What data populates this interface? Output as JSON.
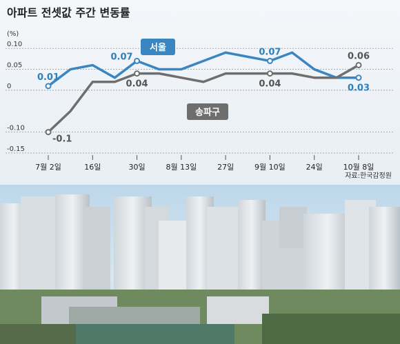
{
  "chart_data": {
    "type": "line",
    "title": "아파트 전셋값 주간 변동률",
    "ylabel": "(%)",
    "ylim": [
      -0.16,
      0.13
    ],
    "yticks": [
      {
        "value": 0.1,
        "label": "0.10"
      },
      {
        "value": 0.05,
        "label": "0.05"
      },
      {
        "value": 0,
        "label": "0"
      },
      {
        "value": -0.1,
        "label": "-0.10"
      },
      {
        "value": -0.15,
        "label": "-0.15"
      }
    ],
    "x_tick_labels": [
      {
        "index": 0,
        "label": "7월 2일"
      },
      {
        "index": 2,
        "label": "16일"
      },
      {
        "index": 4,
        "label": "30일"
      },
      {
        "index": 6,
        "label": "8월 13일"
      },
      {
        "index": 8,
        "label": "27일"
      },
      {
        "index": 10,
        "label": "9월 10일"
      },
      {
        "index": 12,
        "label": "24일"
      },
      {
        "index": 14,
        "label": "10월 8일"
      }
    ],
    "grid": true,
    "series": [
      {
        "name": "서울",
        "color": "#3a86c2",
        "values": [
          0.01,
          0.05,
          0.06,
          0.03,
          0.07,
          0.05,
          0.05,
          0.07,
          0.09,
          0.08,
          0.07,
          0.09,
          0.05,
          0.03,
          0.03
        ]
      },
      {
        "name": "송파구",
        "color": "#6e6e6e",
        "values": [
          -0.1,
          -0.05,
          0.02,
          0.02,
          0.04,
          0.04,
          0.03,
          0.02,
          0.04,
          0.04,
          0.04,
          0.04,
          0.03,
          0.03,
          0.06
        ]
      }
    ],
    "data_labels": [
      {
        "series": 0,
        "index": 0,
        "text": "0.01",
        "pos": "above"
      },
      {
        "series": 0,
        "index": 4,
        "text": "0.07",
        "pos": "left"
      },
      {
        "series": 0,
        "index": 10,
        "text": "0.07",
        "pos": "above"
      },
      {
        "series": 0,
        "index": 14,
        "text": "0.03",
        "pos": "below"
      },
      {
        "series": 1,
        "index": 0,
        "text": "-0.1",
        "pos": "right"
      },
      {
        "series": 1,
        "index": 4,
        "text": "0.04",
        "pos": "below"
      },
      {
        "series": 1,
        "index": 10,
        "text": "0.04",
        "pos": "below"
      },
      {
        "series": 1,
        "index": 14,
        "text": "0.06",
        "pos": "above"
      }
    ],
    "source": "자료:한국감정원"
  },
  "colors": {
    "seoul": "#3a86c2",
    "songpa": "#6e6e6e",
    "grid": "#9aa3ab",
    "chart_bg": "#eef3f7"
  }
}
